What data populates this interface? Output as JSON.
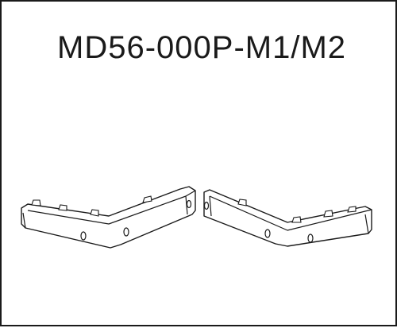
{
  "diagram": {
    "part_number": "MD56-000P-M1/M2"
  }
}
